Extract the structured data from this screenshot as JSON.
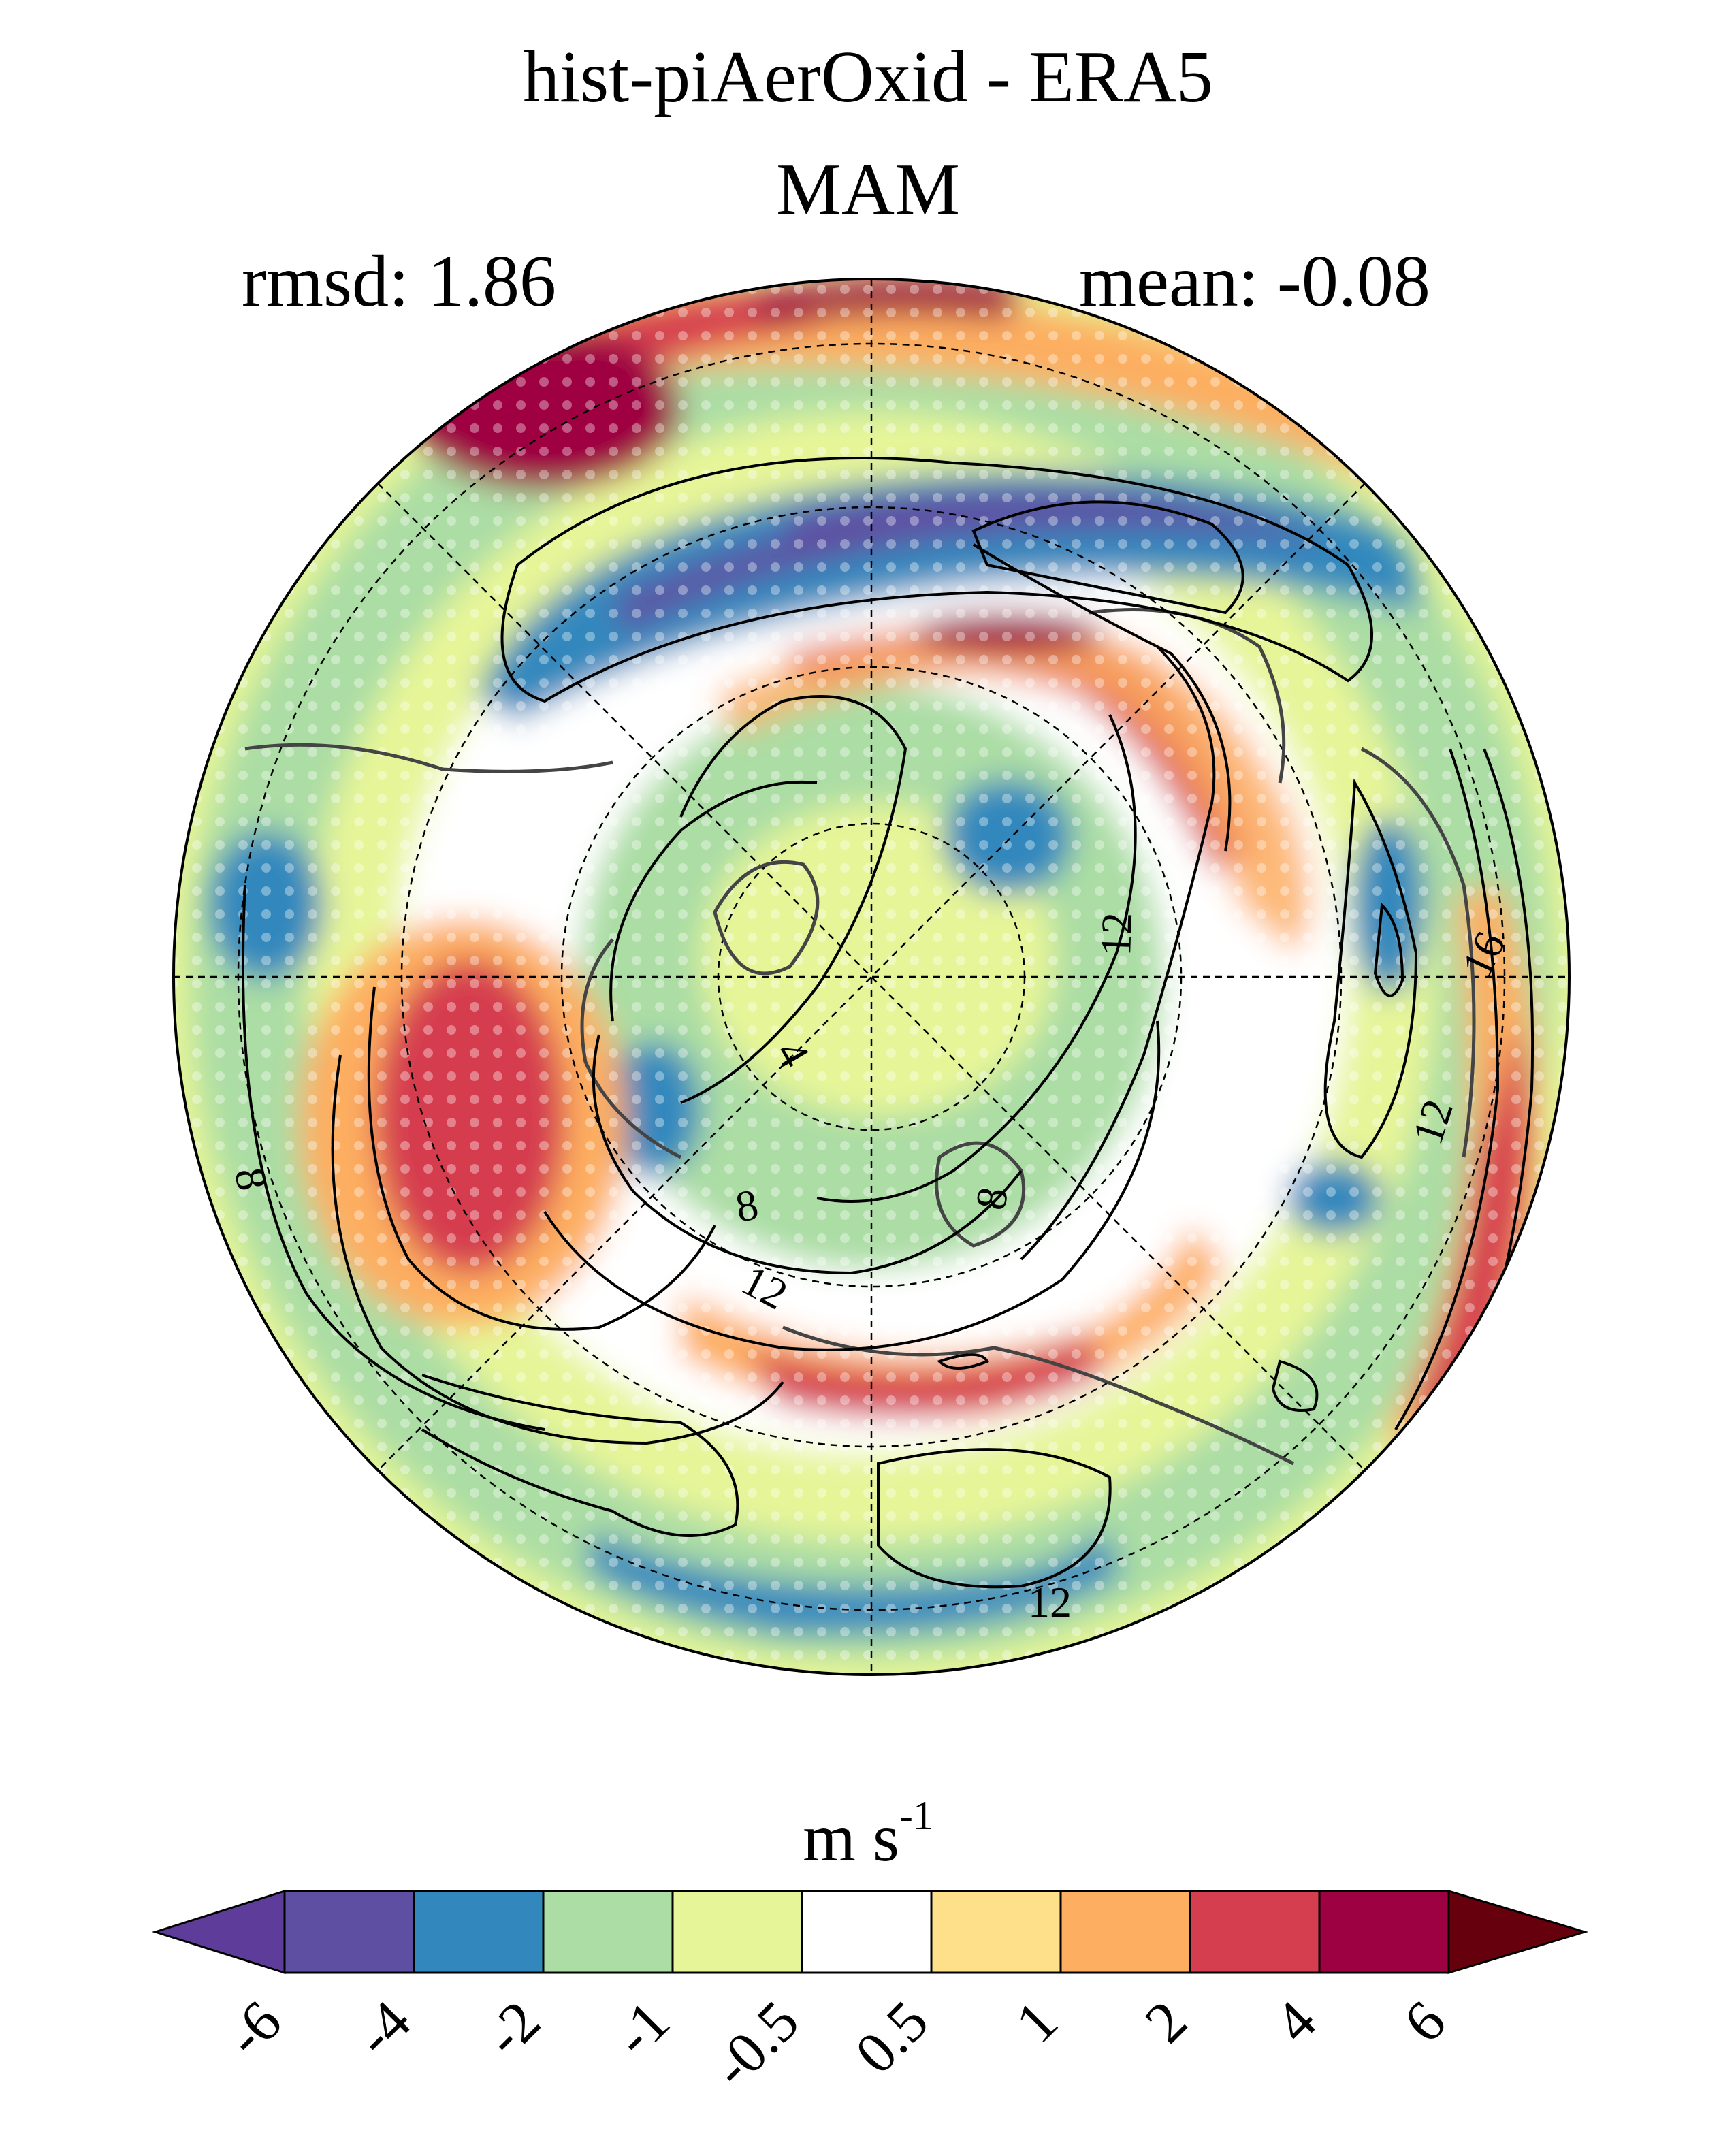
{
  "title": "hist-piAerOxid - ERA5",
  "season": "MAM",
  "stats": {
    "rmsd": "rmsd: 1.86",
    "mean": "mean: -0.08"
  },
  "map": {
    "projection": "polar-stereographic-north",
    "contour_labels": [
      "4",
      "8",
      "8",
      "8",
      "12",
      "12",
      "12",
      "12",
      "16"
    ]
  },
  "colorbar": {
    "units": "m s",
    "units_exponent": "-1",
    "ticks": [
      "-6",
      "-4",
      "-2",
      "-1",
      "-0.5",
      "0.5",
      "1",
      "2",
      "4",
      "6"
    ],
    "colors": [
      "#5e3c99",
      "#5e4fa2",
      "#3288bd",
      "#abdda4",
      "#e6f598",
      "#ffffff",
      "#fee08b",
      "#fdae61",
      "#d53e4f",
      "#9e0142",
      "#67000d"
    ]
  }
}
